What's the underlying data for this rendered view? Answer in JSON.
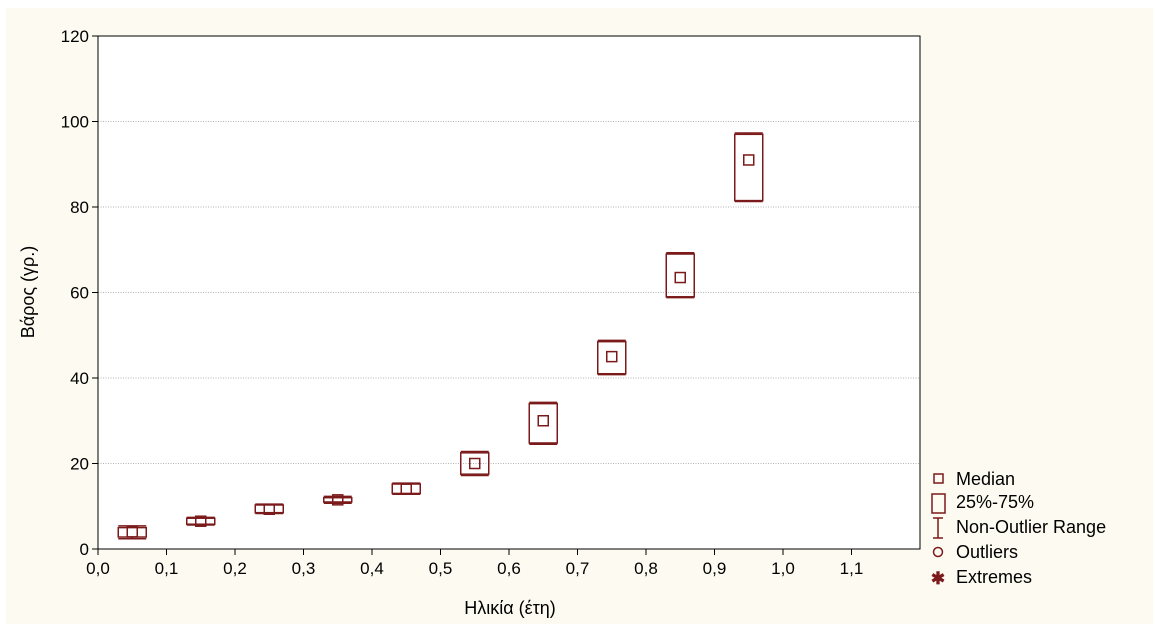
{
  "chart_data": {
    "type": "boxplot",
    "xlabel": "Ηλικία (έτη)",
    "ylabel": "Βάρος (γρ.)",
    "xlim": [
      0.0,
      1.2
    ],
    "ylim": [
      0,
      120
    ],
    "x_ticks": [
      "0,0",
      "0,1",
      "0,2",
      "0,3",
      "0,4",
      "0,5",
      "0,6",
      "0,7",
      "0,8",
      "0,9",
      "1,0",
      "1,1"
    ],
    "y_ticks": [
      "0",
      "20",
      "40",
      "60",
      "80",
      "100",
      "120"
    ],
    "grid": "horizontal",
    "legend_position": "bottom-right",
    "color": "#7b1a1a",
    "boxes": [
      {
        "x": 0.05,
        "min": 2.4,
        "q1": 2.8,
        "median": 4.0,
        "q3": 5.0,
        "max": 5.4
      },
      {
        "x": 0.15,
        "min": 5.6,
        "q1": 5.8,
        "median": 6.5,
        "q3": 7.2,
        "max": 7.4
      },
      {
        "x": 0.25,
        "min": 8.3,
        "q1": 8.5,
        "median": 9.3,
        "q3": 10.3,
        "max": 10.5
      },
      {
        "x": 0.35,
        "min": 10.7,
        "q1": 11.0,
        "median": 11.5,
        "q3": 12.0,
        "max": 12.3
      },
      {
        "x": 0.45,
        "min": 12.8,
        "q1": 13.0,
        "median": 14.0,
        "q3": 15.2,
        "max": 15.4
      },
      {
        "x": 0.55,
        "min": 17.2,
        "q1": 17.5,
        "median": 20.0,
        "q3": 22.5,
        "max": 22.8
      },
      {
        "x": 0.65,
        "min": 24.5,
        "q1": 24.8,
        "median": 30.0,
        "q3": 34.0,
        "max": 34.3
      },
      {
        "x": 0.75,
        "min": 40.8,
        "q1": 41.0,
        "median": 45.0,
        "q3": 48.5,
        "max": 48.8
      },
      {
        "x": 0.85,
        "min": 58.8,
        "q1": 59.0,
        "median": 63.5,
        "q3": 69.0,
        "max": 69.3
      },
      {
        "x": 0.95,
        "min": 81.3,
        "q1": 81.5,
        "median": 91.0,
        "q3": 97.0,
        "max": 97.3
      }
    ],
    "legend": [
      "Median",
      "25%-75%",
      "Non-Outlier Range",
      "Outliers",
      "Extremes"
    ]
  }
}
